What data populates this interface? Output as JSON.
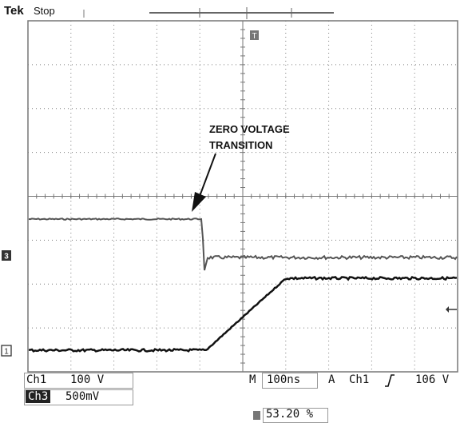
{
  "header": {
    "brand": "Tek",
    "status": "Stop"
  },
  "annotation": {
    "line1": "ZERO VOLTAGE",
    "line2": "TRANSITION"
  },
  "markers": {
    "ch3": "3",
    "ch1": "1",
    "trigger": "T"
  },
  "readouts": {
    "ch1_label": "Ch1",
    "ch1_scale": "100 V",
    "ch3_label": "Ch3",
    "ch3_scale": "500mV",
    "timebase_label": "M",
    "timebase_value": "100ns",
    "trigger_mode": "A",
    "trigger_source": "Ch1",
    "trigger_level": "106 V",
    "trigger_slope_icon": "rising-edge-icon",
    "trigger_position": "53.20 %"
  },
  "colors": {
    "grid": "#777777",
    "trace_ch3": "#555555",
    "trace_ch1": "#111111"
  }
}
